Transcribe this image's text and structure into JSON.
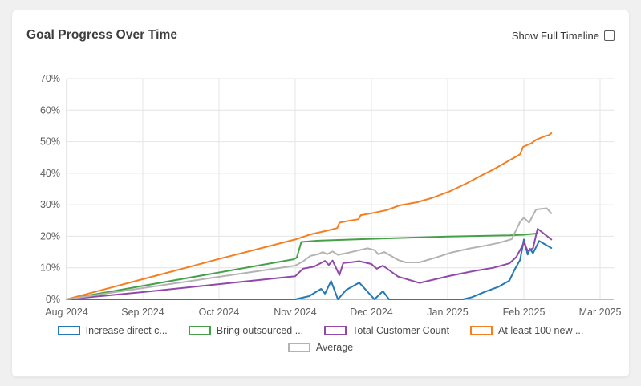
{
  "header": {
    "title": "Goal Progress Over Time",
    "toggle_label": "Show Full Timeline",
    "toggle_checked": false
  },
  "colors": {
    "card_bg": "#ffffff",
    "page_bg": "#f0f0f1",
    "grid": "#e4e4e4",
    "axis": "#ababab",
    "tick_text": "#5f5f5f"
  },
  "chart_data": {
    "type": "line",
    "title": "Goal Progress Over Time",
    "xlabel": "",
    "ylabel": "",
    "x_unit": "months since Aug 1 2024 (0 = Aug 2024, 7 = Mar 2025)",
    "xlim": [
      0,
      7.18
    ],
    "ylim": [
      0,
      70
    ],
    "grid": true,
    "legend_position": "bottom",
    "x_tick_positions": [
      0,
      1,
      2,
      3,
      4,
      5,
      6,
      7
    ],
    "x_tick_labels": [
      "Aug 2024",
      "Sep 2024",
      "Oct 2024",
      "Nov 2024",
      "Dec 2024",
      "Jan 2025",
      "Feb 2025",
      "Mar 2025"
    ],
    "y_tick_positions": [
      0,
      10,
      20,
      30,
      40,
      50,
      60,
      70
    ],
    "y_tick_labels": [
      "0%",
      "10%",
      "20%",
      "30%",
      "40%",
      "50%",
      "60%",
      "70%"
    ],
    "series": [
      {
        "name": "Increase direct c...",
        "color": "#2478b5",
        "points": [
          [
            0,
            0
          ],
          [
            3.0,
            0
          ],
          [
            3.18,
            1.0
          ],
          [
            3.34,
            3.3
          ],
          [
            3.39,
            1.8
          ],
          [
            3.47,
            5.8
          ],
          [
            3.56,
            0
          ],
          [
            3.67,
            3.0
          ],
          [
            3.84,
            5.3
          ],
          [
            4.04,
            0
          ],
          [
            4.15,
            2.6
          ],
          [
            4.23,
            0
          ],
          [
            5.2,
            0
          ],
          [
            5.32,
            0.7
          ],
          [
            5.49,
            2.4
          ],
          [
            5.67,
            4.0
          ],
          [
            5.81,
            5.9
          ],
          [
            5.88,
            9.5
          ],
          [
            5.95,
            12.5
          ],
          [
            6.0,
            19.0
          ],
          [
            6.05,
            14.2
          ],
          [
            6.08,
            16.0
          ],
          [
            6.12,
            14.6
          ],
          [
            6.2,
            18.5
          ],
          [
            6.36,
            16.3
          ]
        ]
      },
      {
        "name": "Bring outsourced ...",
        "color": "#46a049",
        "points": [
          [
            0,
            0
          ],
          [
            2.98,
            12.7
          ],
          [
            3.02,
            13.2
          ],
          [
            3.08,
            18.2
          ],
          [
            3.3,
            18.6
          ],
          [
            4.0,
            19.2
          ],
          [
            5.0,
            19.9
          ],
          [
            5.8,
            20.3
          ],
          [
            6.0,
            20.5
          ],
          [
            6.18,
            20.9
          ]
        ]
      },
      {
        "name": "Total Customer Count",
        "color": "#9149a8",
        "points": [
          [
            0,
            0
          ],
          [
            1.0,
            2.3
          ],
          [
            2.0,
            4.8
          ],
          [
            3.0,
            7.3
          ],
          [
            3.1,
            9.7
          ],
          [
            3.25,
            10.4
          ],
          [
            3.39,
            12.2
          ],
          [
            3.44,
            10.9
          ],
          [
            3.49,
            12.3
          ],
          [
            3.58,
            7.7
          ],
          [
            3.63,
            11.5
          ],
          [
            3.75,
            11.8
          ],
          [
            3.84,
            12.1
          ],
          [
            4.0,
            11.2
          ],
          [
            4.07,
            9.7
          ],
          [
            4.15,
            10.7
          ],
          [
            4.35,
            7.2
          ],
          [
            4.63,
            5.2
          ],
          [
            5.04,
            7.5
          ],
          [
            5.35,
            9.0
          ],
          [
            5.6,
            10.0
          ],
          [
            5.81,
            11.4
          ],
          [
            5.9,
            13.4
          ],
          [
            5.97,
            16.5
          ],
          [
            6.0,
            18.0
          ],
          [
            6.05,
            15.4
          ],
          [
            6.12,
            16.2
          ],
          [
            6.18,
            22.4
          ],
          [
            6.36,
            19.0
          ]
        ]
      },
      {
        "name": "At least 100 new ...",
        "color": "#f57e20",
        "points": [
          [
            0,
            0
          ],
          [
            1.0,
            6.4
          ],
          [
            2.0,
            12.8
          ],
          [
            3.0,
            19.0
          ],
          [
            3.2,
            20.6
          ],
          [
            3.45,
            22.0
          ],
          [
            3.55,
            22.6
          ],
          [
            3.58,
            24.3
          ],
          [
            3.7,
            24.9
          ],
          [
            3.83,
            25.4
          ],
          [
            3.86,
            26.7
          ],
          [
            4.0,
            27.3
          ],
          [
            4.2,
            28.3
          ],
          [
            4.37,
            29.8
          ],
          [
            4.6,
            30.8
          ],
          [
            4.8,
            32.2
          ],
          [
            5.04,
            34.4
          ],
          [
            5.25,
            36.8
          ],
          [
            5.42,
            39.0
          ],
          [
            5.6,
            41.2
          ],
          [
            5.84,
            44.5
          ],
          [
            5.95,
            46.0
          ],
          [
            5.99,
            48.4
          ],
          [
            6.1,
            49.5
          ],
          [
            6.16,
            50.6
          ],
          [
            6.28,
            51.8
          ],
          [
            6.33,
            52.1
          ],
          [
            6.36,
            52.7
          ]
        ]
      },
      {
        "name": "Average",
        "color": "#b3b3b3",
        "points": [
          [
            0,
            0
          ],
          [
            3.0,
            10.7
          ],
          [
            3.1,
            12.0
          ],
          [
            3.2,
            13.8
          ],
          [
            3.3,
            14.3
          ],
          [
            3.36,
            15.0
          ],
          [
            3.42,
            14.3
          ],
          [
            3.49,
            15.2
          ],
          [
            3.56,
            14.1
          ],
          [
            3.7,
            14.8
          ],
          [
            3.84,
            15.6
          ],
          [
            3.95,
            16.2
          ],
          [
            4.04,
            15.6
          ],
          [
            4.09,
            14.3
          ],
          [
            4.17,
            15.0
          ],
          [
            4.35,
            12.5
          ],
          [
            4.45,
            11.7
          ],
          [
            4.63,
            11.7
          ],
          [
            4.85,
            13.3
          ],
          [
            5.04,
            14.8
          ],
          [
            5.3,
            16.2
          ],
          [
            5.49,
            17.0
          ],
          [
            5.67,
            17.9
          ],
          [
            5.84,
            19.1
          ],
          [
            5.95,
            24.6
          ],
          [
            6.0,
            25.9
          ],
          [
            6.07,
            24.3
          ],
          [
            6.16,
            28.5
          ],
          [
            6.3,
            28.9
          ],
          [
            6.36,
            27.3
          ]
        ]
      }
    ]
  }
}
